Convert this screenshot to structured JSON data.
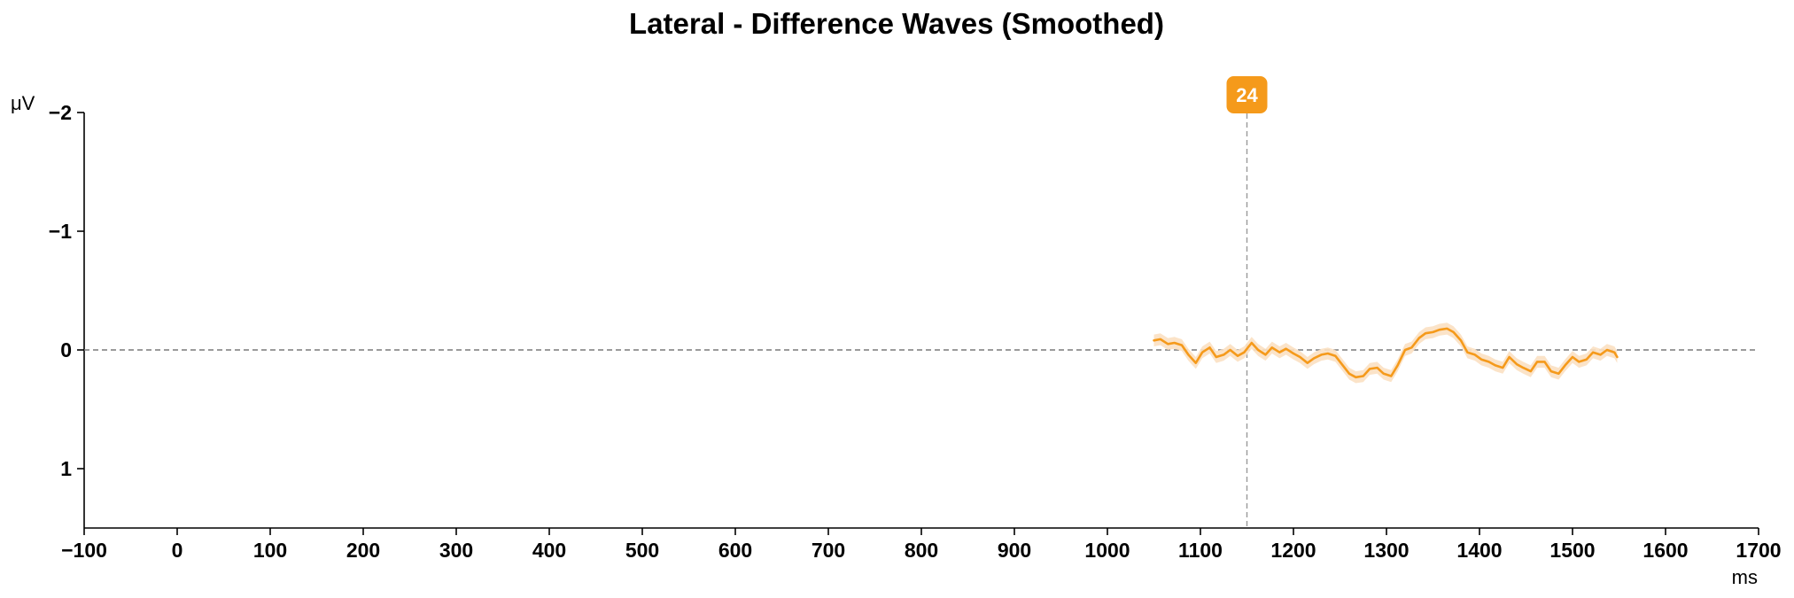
{
  "chart_data": {
    "type": "line",
    "title": "Lateral - Difference Waves (Smoothed)",
    "xlabel": "ms",
    "ylabel": "μV",
    "xlim": [
      -100,
      1700
    ],
    "ylim": [
      -2,
      1.5
    ],
    "y_inverted": true,
    "x_ticks": [
      -100,
      0,
      100,
      200,
      300,
      400,
      500,
      600,
      700,
      800,
      900,
      1000,
      1100,
      1200,
      1300,
      1400,
      1500,
      1600,
      1700
    ],
    "x_tick_labels": [
      "−100",
      "0",
      "100",
      "200",
      "300",
      "400",
      "500",
      "600",
      "700",
      "800",
      "900",
      "1000",
      "1100",
      "1200",
      "1300",
      "1400",
      "1500",
      "1600",
      "1700"
    ],
    "y_ticks": [
      -2,
      -1,
      0,
      1
    ],
    "y_tick_labels": [
      "−2",
      "−1",
      "0",
      "1"
    ],
    "zero_line": 0,
    "grid": false,
    "series_color": "#F59A1B",
    "band_color": "#FBE0C2",
    "marker": {
      "label": "24",
      "x": 1150,
      "color": "#F59A1B"
    },
    "series": [
      {
        "x": [
          1050,
          1057,
          1065,
          1072,
          1080,
          1087,
          1095,
          1102,
          1110,
          1117,
          1125,
          1132,
          1140,
          1147,
          1155,
          1162,
          1170,
          1177,
          1185,
          1192,
          1200,
          1207,
          1215,
          1222,
          1230,
          1237,
          1245,
          1252,
          1260,
          1267,
          1275,
          1282,
          1290,
          1297,
          1305,
          1312,
          1320,
          1327,
          1335,
          1342,
          1350,
          1357,
          1365,
          1372,
          1380,
          1387,
          1395,
          1402,
          1410,
          1417,
          1425,
          1432,
          1440,
          1447,
          1455,
          1462,
          1470,
          1477,
          1485,
          1492,
          1500,
          1507,
          1515,
          1522,
          1530,
          1537,
          1545,
          1548
        ],
        "values": [
          -0.08,
          -0.09,
          -0.05,
          -0.06,
          -0.04,
          0.04,
          0.11,
          0.02,
          -0.02,
          0.06,
          0.04,
          0.0,
          0.05,
          0.02,
          -0.06,
          0.0,
          0.04,
          -0.02,
          0.02,
          -0.01,
          0.03,
          0.06,
          0.11,
          0.07,
          0.04,
          0.03,
          0.05,
          0.12,
          0.2,
          0.23,
          0.22,
          0.16,
          0.15,
          0.2,
          0.22,
          0.13,
          0.0,
          -0.02,
          -0.1,
          -0.14,
          -0.15,
          -0.17,
          -0.18,
          -0.15,
          -0.08,
          0.02,
          0.04,
          0.08,
          0.1,
          0.13,
          0.15,
          0.06,
          0.12,
          0.15,
          0.18,
          0.1,
          0.1,
          0.18,
          0.2,
          0.13,
          0.06,
          0.1,
          0.08,
          0.02,
          0.04,
          0.0,
          0.02,
          0.06
        ],
        "band": 0.05
      }
    ]
  }
}
